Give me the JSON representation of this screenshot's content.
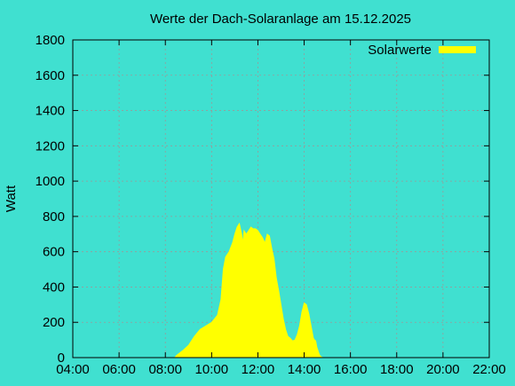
{
  "chart_data": {
    "type": "area",
    "title": "Werte der Dach-Solaranlage am 15.12.2025",
    "xlabel": "",
    "ylabel": "Watt",
    "x_ticks": [
      "04:00",
      "06:00",
      "08:00",
      "10:00",
      "12:00",
      "14:00",
      "16:00",
      "18:00",
      "20:00",
      "22:00"
    ],
    "y_ticks": [
      "0",
      "200",
      "400",
      "600",
      "800",
      "1000",
      "1200",
      "1400",
      "1600",
      "1800"
    ],
    "xlim_hours": [
      4,
      22
    ],
    "ylim": [
      0,
      1800
    ],
    "grid": true,
    "legend_position": "top-right",
    "background_color": "#40e0d0",
    "series": [
      {
        "name": "Solarwerte",
        "color": "#ffff00",
        "x_hours": [
          8.4,
          8.5,
          8.75,
          9.0,
          9.25,
          9.5,
          9.75,
          10.0,
          10.25,
          10.4,
          10.5,
          10.6,
          10.75,
          10.9,
          11.0,
          11.1,
          11.2,
          11.3,
          11.35,
          11.4,
          11.5,
          11.6,
          11.7,
          11.8,
          11.9,
          12.0,
          12.1,
          12.2,
          12.3,
          12.4,
          12.5,
          12.6,
          12.7,
          12.8,
          12.9,
          13.0,
          13.1,
          13.2,
          13.3,
          13.4,
          13.5,
          13.6,
          13.7,
          13.8,
          13.9,
          14.0,
          14.1,
          14.2,
          14.3,
          14.4,
          14.45,
          14.5,
          14.55,
          14.6,
          14.65,
          14.7,
          14.8,
          14.9,
          15.0,
          15.1,
          15.2,
          15.3,
          15.5,
          15.7
        ],
        "values": [
          0,
          15,
          40,
          70,
          120,
          160,
          180,
          200,
          240,
          330,
          500,
          570,
          600,
          650,
          700,
          740,
          760,
          700,
          650,
          720,
          700,
          720,
          740,
          730,
          730,
          720,
          700,
          680,
          650,
          700,
          690,
          620,
          560,
          450,
          380,
          300,
          220,
          160,
          120,
          110,
          95,
          100,
          130,
          180,
          260,
          310,
          300,
          250,
          180,
          110,
          100,
          95,
          60,
          40,
          20,
          8,
          0,
          0,
          0,
          0,
          0,
          0,
          0,
          0
        ]
      }
    ]
  }
}
